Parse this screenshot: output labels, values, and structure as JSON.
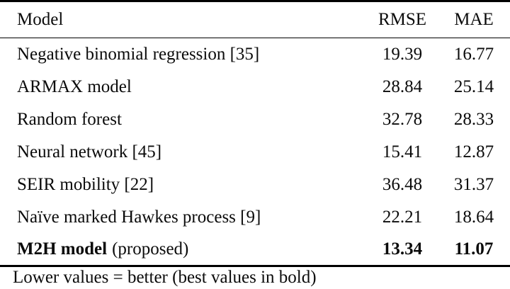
{
  "table": {
    "columns": [
      "Model",
      "RMSE",
      "MAE"
    ],
    "rows": [
      {
        "model": "Negative binomial regression [35]",
        "note": "",
        "rmse": "19.39",
        "mae": "16.77"
      },
      {
        "model": "ARMAX model",
        "note": "",
        "rmse": "28.84",
        "mae": "25.14"
      },
      {
        "model": "Random forest",
        "note": "",
        "rmse": "32.78",
        "mae": "28.33"
      },
      {
        "model": "Neural network [45]",
        "note": "",
        "rmse": "15.41",
        "mae": "12.87"
      },
      {
        "model": "SEIR mobility [22]",
        "note": "",
        "rmse": "36.48",
        "mae": "31.37"
      },
      {
        "model": "Naïve marked Hawkes process [9]",
        "note": "",
        "rmse": "22.21",
        "mae": "18.64"
      },
      {
        "model": "M2H model",
        "note": "(proposed)",
        "rmse": "13.34",
        "mae": "11.07"
      }
    ],
    "footnote": "Lower values = better (best values in bold)"
  },
  "colors": {
    "background": "#ffffff",
    "text": "#0b0b0b",
    "rule": "#000000"
  }
}
